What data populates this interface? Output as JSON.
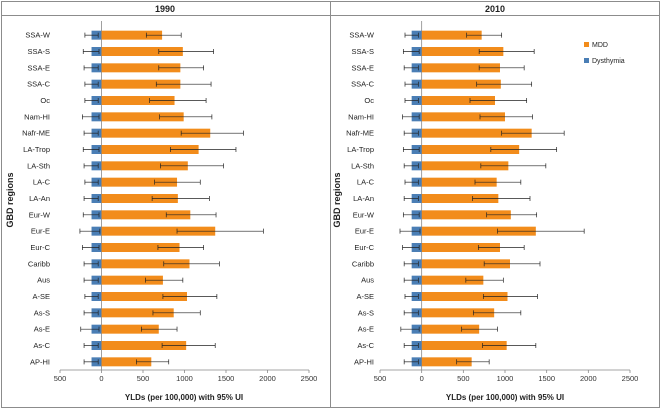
{
  "chart_data": [
    {
      "type": "bar",
      "orientation": "horizontal",
      "title": "1990",
      "xlabel": "YLDs (per 100,000) with 95% UI",
      "ylabel": "GBD regions",
      "xlim": [
        -500,
        2500
      ],
      "xticks": [
        "500",
        "0",
        "500",
        "1000",
        "1500",
        "2000",
        "2500"
      ],
      "grid": false,
      "legend": "none",
      "categories": [
        "SSA-W",
        "SSA-S",
        "SSA-E",
        "SSA-C",
        "Oc",
        "Nam-HI",
        "Nafr-ME",
        "LA-Trop",
        "LA-Sth",
        "LA-C",
        "LA-An",
        "Eur-W",
        "Eur-E",
        "Eur-C",
        "Caribb",
        "Aus",
        "A-SE",
        "As-S",
        "As-E",
        "As-C",
        "AP-HI"
      ],
      "series": [
        {
          "name": "MDD",
          "color": "#f28c1b",
          "values": [
            730,
            980,
            950,
            950,
            880,
            990,
            1310,
            1170,
            1040,
            910,
            920,
            1070,
            1370,
            940,
            1060,
            740,
            1030,
            870,
            690,
            1020,
            600
          ],
          "lower": [
            540,
            690,
            690,
            660,
            580,
            700,
            960,
            830,
            710,
            640,
            610,
            780,
            910,
            680,
            750,
            530,
            740,
            620,
            480,
            730,
            420
          ],
          "upper": [
            960,
            1350,
            1230,
            1320,
            1260,
            1330,
            1710,
            1620,
            1470,
            1190,
            1300,
            1380,
            1950,
            1230,
            1420,
            980,
            1390,
            1190,
            910,
            1370,
            810
          ]
        },
        {
          "name": "Dysthymia",
          "color": "#4a7eb5",
          "values": [
            -120,
            -120,
            -120,
            -120,
            -120,
            -120,
            -120,
            -120,
            -120,
            -120,
            -120,
            -120,
            -120,
            -120,
            -120,
            -120,
            -120,
            -120,
            -120,
            -120,
            -120
          ],
          "lower": [
            -200,
            -220,
            -210,
            -200,
            -200,
            -230,
            -210,
            -220,
            -210,
            -200,
            -210,
            -220,
            -260,
            -230,
            -210,
            -210,
            -200,
            -210,
            -250,
            -210,
            -210
          ],
          "upper": [
            -40,
            -30,
            -40,
            -40,
            -40,
            -30,
            -40,
            -30,
            -40,
            -40,
            -40,
            -30,
            -20,
            -30,
            -40,
            -40,
            -40,
            -40,
            -30,
            -40,
            -40
          ]
        }
      ]
    },
    {
      "type": "bar",
      "orientation": "horizontal",
      "title": "2010",
      "xlabel": "YLDs (per 100,000) with 95% UI",
      "ylabel": "GBD regions",
      "xlim": [
        -500,
        2500
      ],
      "xticks": [
        "500",
        "0",
        "500",
        "1000",
        "1500",
        "2000",
        "2500"
      ],
      "grid": false,
      "legend": "top-right",
      "categories": [
        "SSA-W",
        "SSA-S",
        "SSA-E",
        "SSA-C",
        "Oc",
        "Nam-HI",
        "Nafr-ME",
        "LA-Trop",
        "LA-Sth",
        "LA-C",
        "LA-An",
        "Eur-W",
        "Eur-E",
        "Eur-C",
        "Caribb",
        "Aus",
        "A-SE",
        "As-S",
        "As-E",
        "As-C",
        "AP-HI"
      ],
      "series": [
        {
          "name": "MDD",
          "color": "#f28c1b",
          "values": [
            720,
            980,
            940,
            950,
            880,
            1000,
            1320,
            1170,
            1040,
            900,
            920,
            1070,
            1370,
            940,
            1060,
            740,
            1030,
            870,
            690,
            1020,
            600
          ],
          "lower": [
            540,
            690,
            690,
            660,
            580,
            700,
            960,
            830,
            710,
            640,
            610,
            780,
            910,
            680,
            750,
            530,
            740,
            620,
            480,
            730,
            420
          ],
          "upper": [
            960,
            1350,
            1230,
            1320,
            1260,
            1330,
            1710,
            1620,
            1490,
            1190,
            1300,
            1380,
            1950,
            1230,
            1420,
            980,
            1390,
            1190,
            910,
            1370,
            810
          ]
        },
        {
          "name": "Dysthymia",
          "color": "#4a7eb5",
          "values": [
            -120,
            -120,
            -120,
            -120,
            -120,
            -120,
            -120,
            -120,
            -120,
            -120,
            -120,
            -120,
            -120,
            -120,
            -120,
            -120,
            -120,
            -120,
            -120,
            -120,
            -120
          ],
          "lower": [
            -200,
            -220,
            -210,
            -200,
            -200,
            -230,
            -210,
            -220,
            -210,
            -200,
            -210,
            -220,
            -260,
            -230,
            -210,
            -210,
            -200,
            -210,
            -250,
            -210,
            -210
          ],
          "upper": [
            -40,
            -30,
            -40,
            -40,
            -40,
            -30,
            -40,
            -30,
            -40,
            -40,
            -40,
            -30,
            -20,
            -30,
            -40,
            -40,
            -40,
            -40,
            -30,
            -40,
            -40
          ]
        }
      ]
    }
  ]
}
